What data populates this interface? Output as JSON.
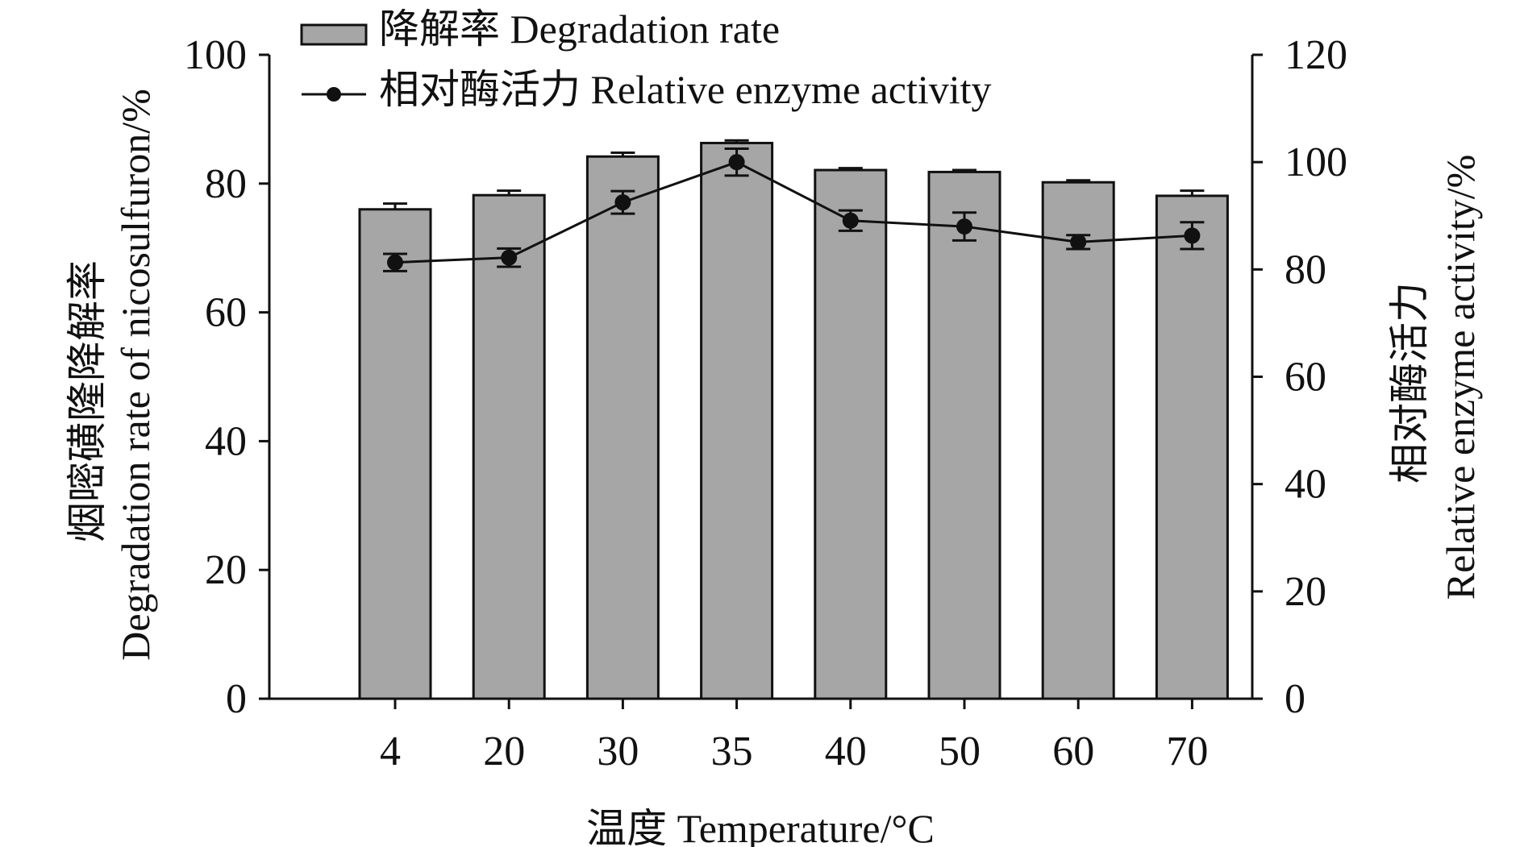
{
  "chart_data": {
    "type": "bar",
    "categories": [
      "4",
      "20",
      "30",
      "35",
      "40",
      "50",
      "60",
      "70"
    ],
    "xlabel": "温度 Temperature/°C",
    "ylabel_left_cn": "烟嘧磺隆降解率",
    "ylabel_left_en": "Degradation rate of nicosulfuron/%",
    "ylabel_right_cn": "相对酶活力",
    "ylabel_right_en": "Relative enzyme activity/%",
    "ylim_left": [
      0,
      100
    ],
    "yticks_left": [
      "0",
      "20",
      "40",
      "60",
      "80",
      "100"
    ],
    "ylim_right": [
      0,
      120
    ],
    "yticks_right": [
      "0",
      "20",
      "40",
      "60",
      "80",
      "100",
      "120"
    ],
    "grid": false,
    "legend_position": "top-left",
    "series": [
      {
        "name": "降解率 Degradation rate",
        "type": "bar",
        "axis": "left",
        "color": "#a6a6a6",
        "values": [
          76.0,
          78.2,
          84.2,
          86.3,
          82.1,
          81.8,
          80.2,
          78.1
        ],
        "errors": [
          0.9,
          0.7,
          0.6,
          0.4,
          0.3,
          0.3,
          0.3,
          0.8
        ]
      },
      {
        "name": "相对酶活力 Relative enzyme activity",
        "type": "line",
        "axis": "right",
        "color": "#111111",
        "values": [
          81.3,
          82.2,
          92.5,
          100.0,
          89.1,
          88.0,
          85.1,
          86.3
        ],
        "errors": [
          1.6,
          1.7,
          2.1,
          2.5,
          1.9,
          2.6,
          1.3,
          2.5
        ]
      }
    ]
  }
}
